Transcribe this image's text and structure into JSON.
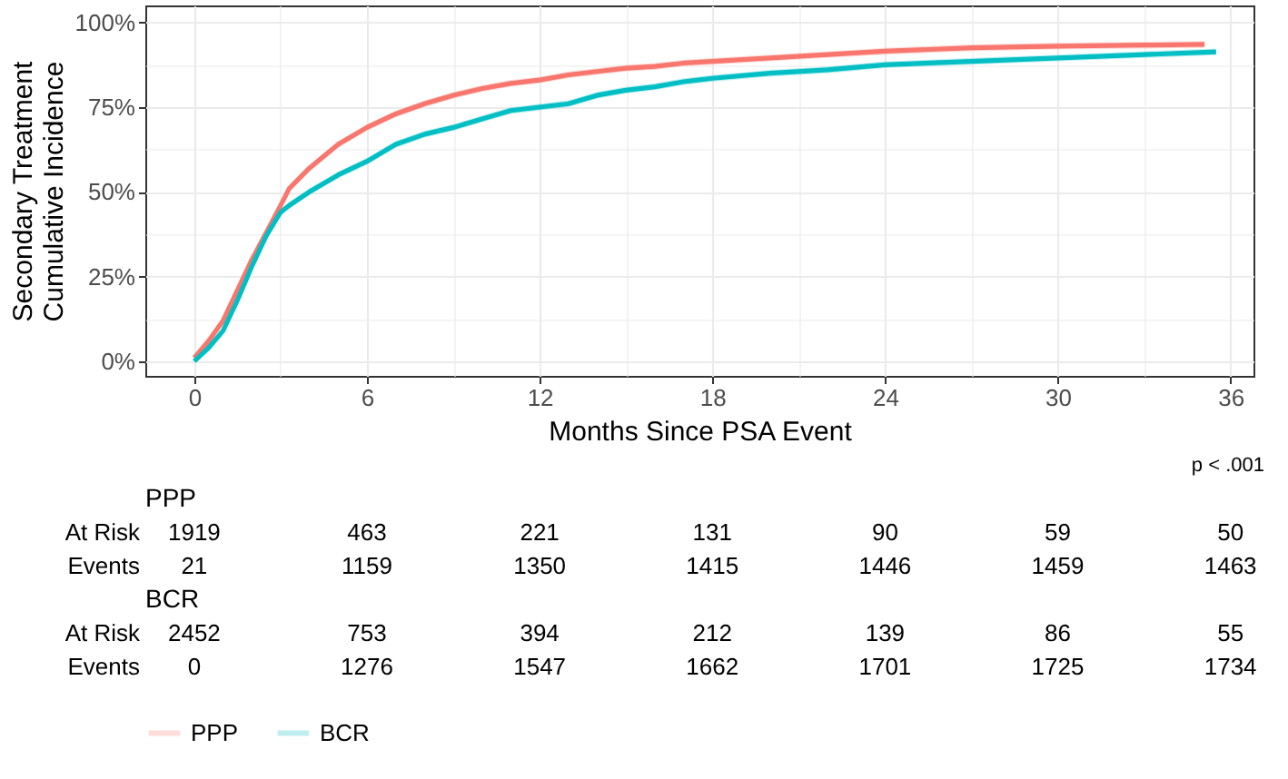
{
  "chart_data": {
    "type": "line",
    "xlabel": "Months Since PSA Event",
    "ylabel": "Secondary Treatment\nCumulative Incidence",
    "xlim": [
      -1.7,
      36.8
    ],
    "ylim": [
      -4.3,
      105
    ],
    "xticks": [
      0,
      {
        "value": 3,
        "label": null
      },
      6,
      {
        "value": 9,
        "label": null
      },
      12,
      {
        "value": 15,
        "label": null
      },
      18,
      {
        "value": 21,
        "label": null
      },
      24,
      {
        "value": 27,
        "label": null
      },
      30,
      {
        "value": 33,
        "label": null
      },
      36
    ],
    "yticks": [
      {
        "value": 0,
        "label": "0%"
      },
      {
        "value": 12.5,
        "label": null
      },
      {
        "value": 25,
        "label": "25%"
      },
      {
        "value": 37.5,
        "label": null
      },
      {
        "value": 50,
        "label": "50%"
      },
      {
        "value": 62.5,
        "label": null
      },
      {
        "value": 75,
        "label": "75%"
      },
      {
        "value": 87.5,
        "label": null
      },
      {
        "value": 100,
        "label": "100%"
      }
    ],
    "grid": true,
    "legend": "bottom",
    "series": [
      {
        "name": "PPP",
        "color": "#f8766d",
        "x": [
          0,
          0.5,
          1,
          1.5,
          2,
          2.5,
          3,
          3.3,
          4,
          5,
          6,
          7,
          8,
          9,
          10,
          11,
          12,
          13,
          14,
          15,
          16,
          17,
          18,
          20,
          22,
          24,
          27,
          30,
          33,
          35.1
        ],
        "values": [
          1,
          6,
          12,
          21,
          30,
          38,
          46,
          51,
          57,
          64,
          69,
          73,
          76,
          78.5,
          80.5,
          82,
          83,
          84.5,
          85.5,
          86.5,
          87,
          88,
          88.5,
          89.5,
          90.5,
          91.5,
          92.5,
          93,
          93.3,
          93.5
        ],
        "lower": [
          0,
          5,
          11,
          20,
          29,
          37,
          45,
          50,
          56,
          63,
          68,
          72,
          75,
          77.5,
          79.5,
          81,
          82,
          83.5,
          84.5,
          85.5,
          86,
          87,
          87.5,
          88.5,
          89.5,
          90.5,
          91.5,
          92,
          92.3,
          92.5
        ],
        "upper": [
          2,
          7,
          13,
          22,
          31,
          39,
          47,
          52,
          58,
          65,
          70,
          74,
          77,
          79.5,
          81.5,
          83,
          84,
          85.5,
          86.5,
          87.5,
          88,
          89,
          89.5,
          90.5,
          91.5,
          92.5,
          93.5,
          94,
          94.3,
          94.5
        ]
      },
      {
        "name": "BCR",
        "color": "#00bfc4",
        "x": [
          0,
          0.5,
          1,
          1.5,
          2,
          2.5,
          3,
          3.3,
          4,
          5,
          6,
          7,
          8,
          9,
          10,
          11,
          12,
          13,
          14,
          15,
          16,
          17,
          18,
          20,
          22,
          24,
          27,
          30,
          33,
          35.5
        ],
        "values": [
          0,
          4,
          9,
          18,
          28,
          37,
          44,
          46,
          50,
          55,
          59,
          64,
          67,
          69,
          71.5,
          74,
          75,
          76,
          78.5,
          80,
          81,
          82.5,
          83.5,
          85,
          86,
          87.5,
          88.5,
          89.5,
          90.5,
          91.3
        ],
        "lower": [
          0,
          3,
          8,
          17,
          27,
          36,
          43,
          45,
          49,
          54,
          58,
          63,
          66,
          68,
          70.5,
          73,
          74,
          75,
          77.5,
          79,
          80,
          81.5,
          82.5,
          84,
          85,
          86.5,
          87.5,
          88.5,
          89.5,
          90.3
        ],
        "upper": [
          1,
          5,
          10,
          19,
          29,
          38,
          45,
          47,
          51,
          56,
          60,
          65,
          68,
          70,
          72.5,
          75,
          76,
          77,
          79.5,
          81,
          82,
          83.5,
          84.5,
          86,
          87,
          88.5,
          89.5,
          90.5,
          91.5,
          92.3
        ]
      }
    ],
    "annotations": [
      "p < .001",
      "PPP",
      "At Risk",
      "1919",
      "463",
      "221",
      "131",
      "90",
      "59",
      "50",
      "Events",
      "21",
      "1159",
      "1350",
      "1415",
      "1446",
      "1459",
      "1463",
      "BCR",
      "At Risk",
      "2452",
      "753",
      "394",
      "212",
      "139",
      "86",
      "55",
      "Events",
      "0",
      "1276",
      "1547",
      "1662",
      "1701",
      "1725",
      "1734"
    ]
  }
}
